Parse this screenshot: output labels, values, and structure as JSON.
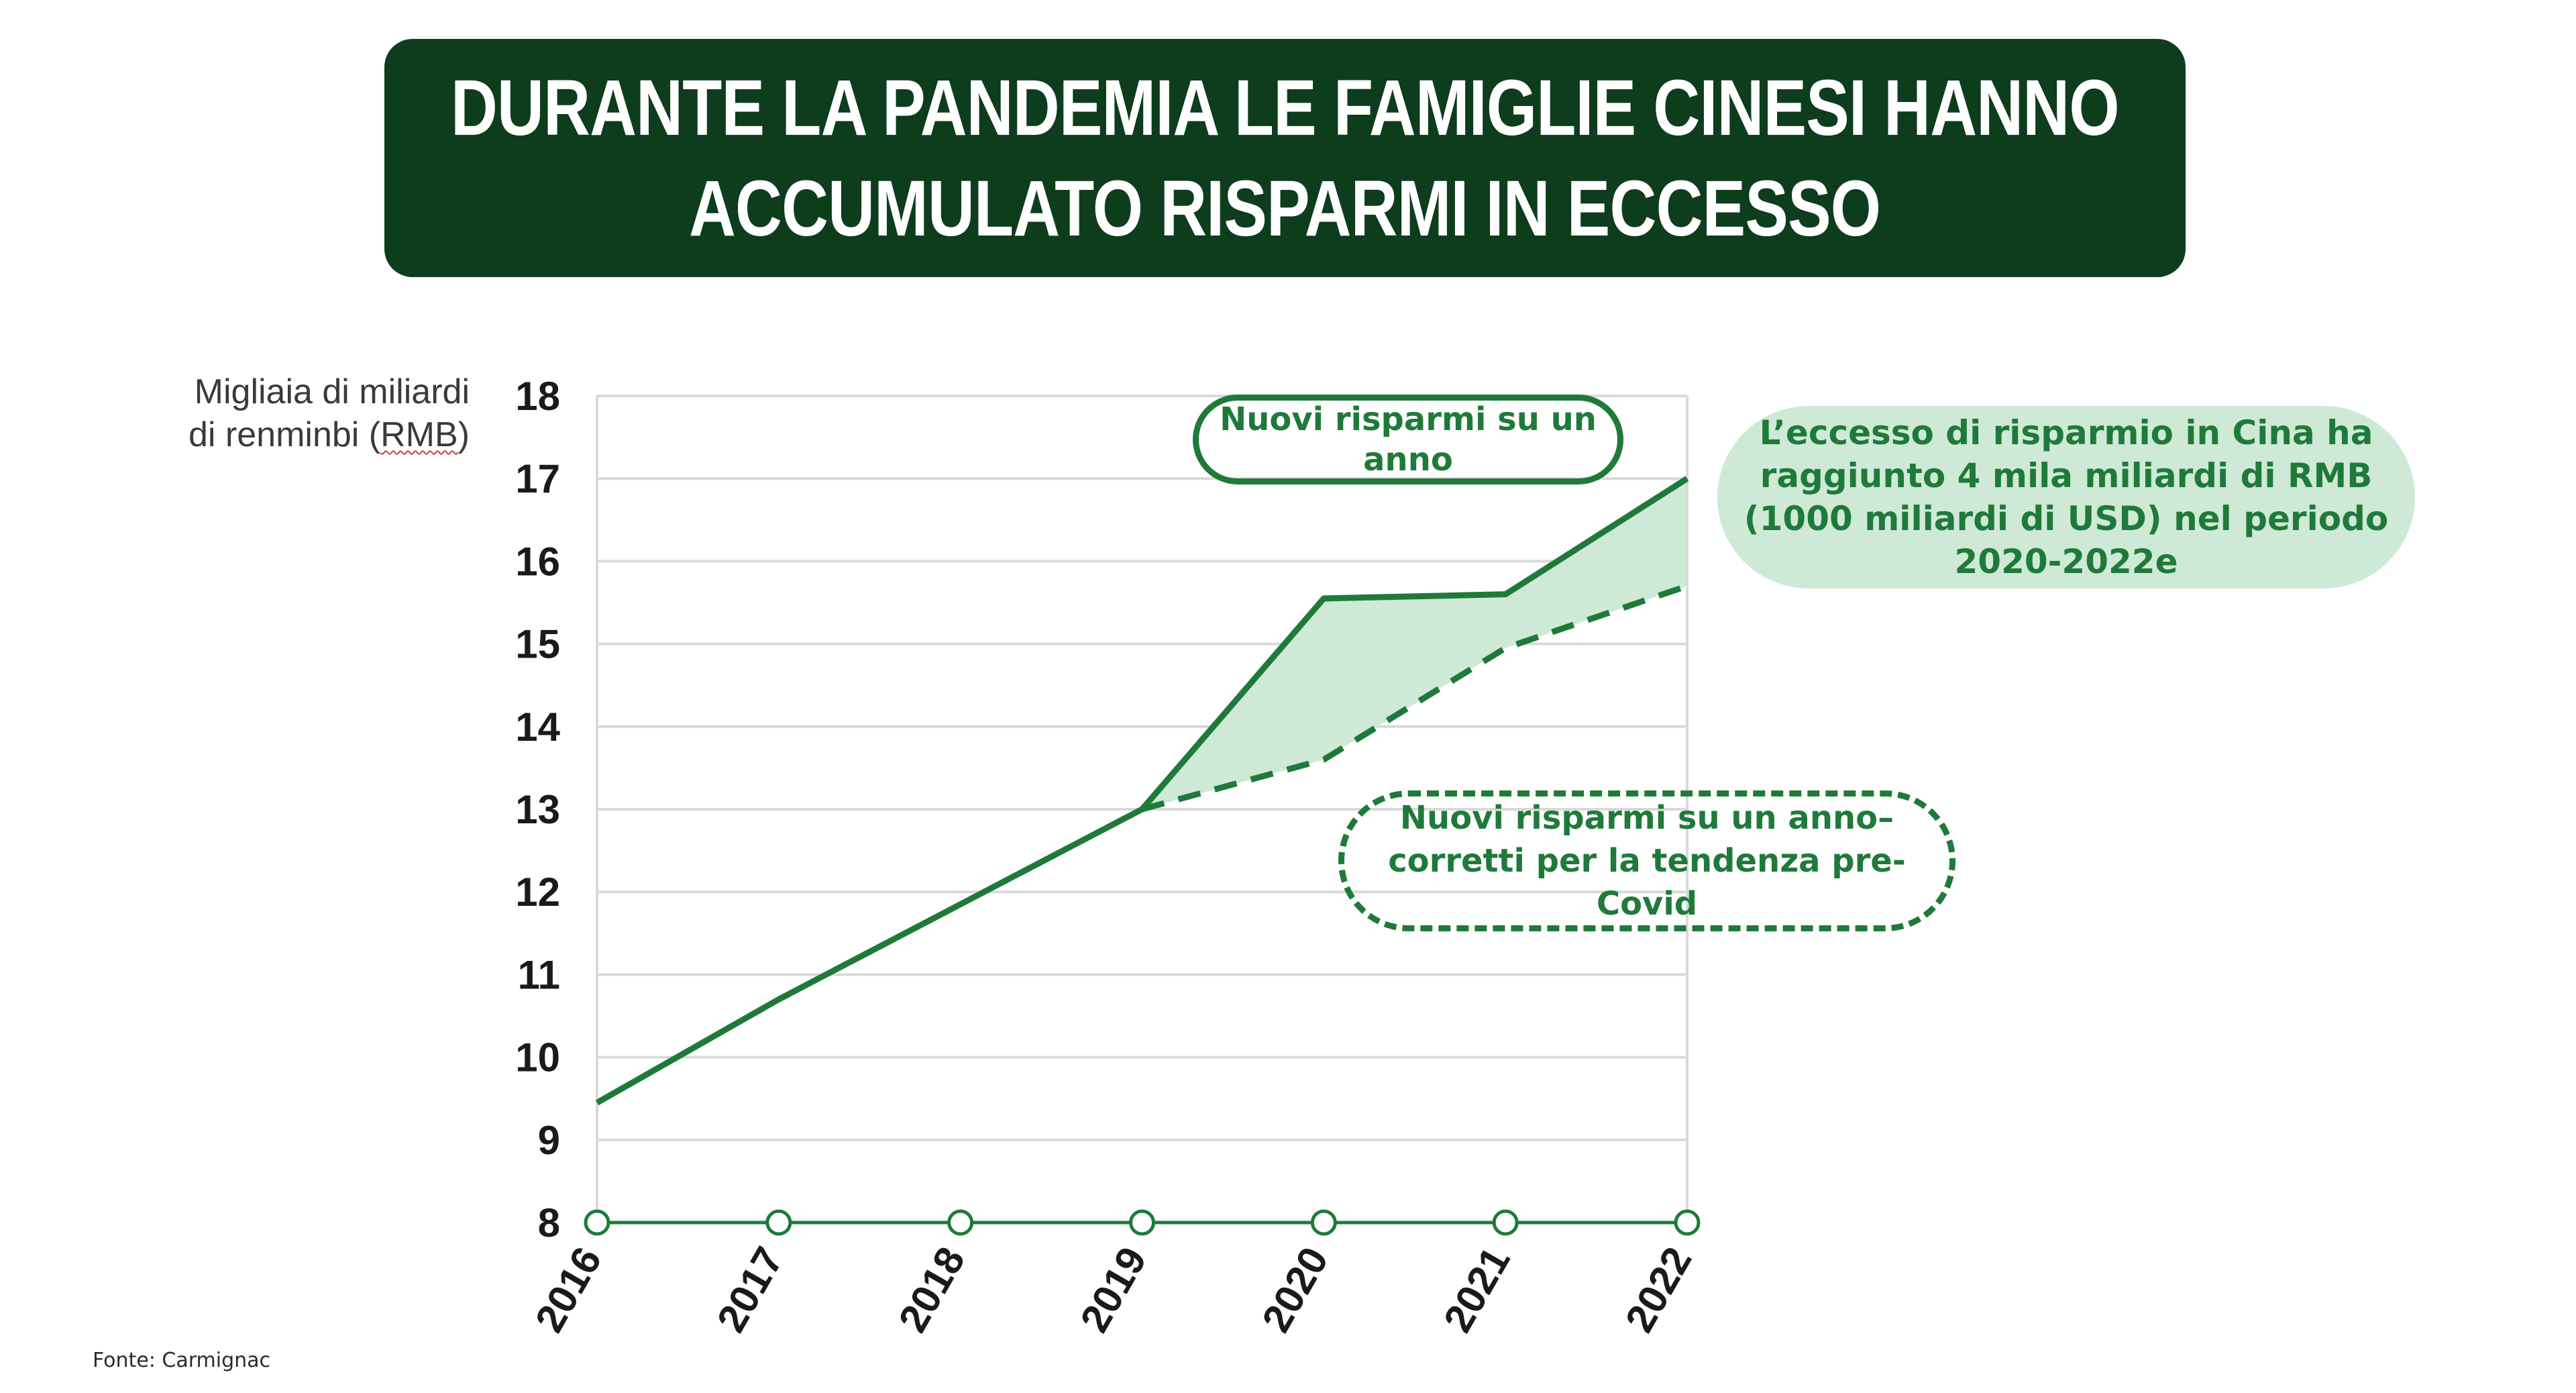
{
  "title": {
    "line1": "DURANTE LA PANDEMIA LE FAMIGLIE CINESI HANNO",
    "line2": "ACCUMULATO RISPARMI IN ECCESSO"
  },
  "y_unit": {
    "line1": "Migliaia di miliardi",
    "line2_prefix": "di renminbi (",
    "line2_rmb": "RMB",
    "line2_suffix": ")"
  },
  "callouts": {
    "new_savings": "Nuovi risparmi su un anno",
    "trend_corrected": "Nuovi risparmi su un anno–corretti per la tendenza pre-Covid",
    "excess": "L’eccesso di risparmio in Cina ha raggiunto 4 mila miliardi di RMB (1000 miliardi di USD) nel periodo 2020-2022e"
  },
  "source": "Fonte:  Carmignac",
  "chart_data": {
    "type": "line",
    "x": [
      "2016",
      "2017",
      "2018",
      "2019",
      "2020",
      "2021",
      "2022"
    ],
    "ylim": [
      8,
      18
    ],
    "yticks": [
      8,
      9,
      10,
      11,
      12,
      13,
      14,
      15,
      16,
      17,
      18
    ],
    "grid": true,
    "series": [
      {
        "name": "Nuovi risparmi su un anno",
        "style": "solid",
        "values": [
          9.45,
          10.7,
          11.85,
          13.0,
          15.55,
          15.6,
          17.0
        ]
      },
      {
        "name": "Nuovi risparmi su un anno–corretti per la tendenza pre-Covid",
        "style": "dashed",
        "values": [
          null,
          null,
          null,
          13.0,
          13.6,
          14.95,
          15.7
        ]
      }
    ],
    "shaded_region": {
      "between": [
        "Nuovi risparmi su un anno",
        "Nuovi risparmi su un anno–corretti per la tendenza pre-Covid"
      ],
      "from": "2019",
      "to": "2022"
    },
    "colors": {
      "line": "#1f7a3a",
      "fill": "#cfe9d7",
      "grid": "#d9d9d9",
      "title_bg": "#0d3d1c"
    }
  }
}
